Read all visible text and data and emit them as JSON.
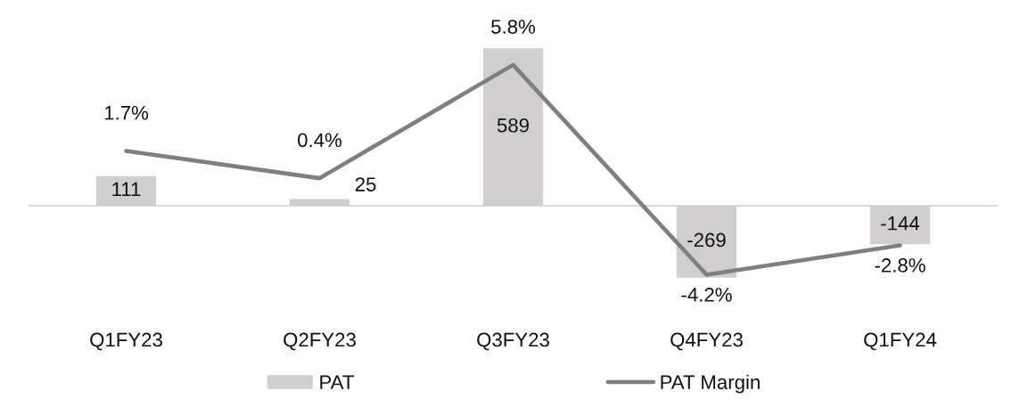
{
  "chart_data": {
    "type": "bar",
    "categories": [
      "Q1FY23",
      "Q2FY23",
      "Q3FY23",
      "Q4FY23",
      "Q1FY24"
    ],
    "series": [
      {
        "name": "PAT",
        "color": "#d0cece",
        "values": [
          111,
          25,
          589,
          -269,
          -144
        ],
        "value_labels": [
          "111",
          "25",
          "589",
          "-269",
          "-144"
        ]
      },
      {
        "name": "PAT Margin",
        "type": "line",
        "axis": "y2",
        "color": "#7f7f7f",
        "values": [
          1.7,
          0.4,
          5.8,
          -4.2,
          -2.8
        ],
        "value_labels": [
          "1.7%",
          "0.4%",
          "5.8%",
          "-4.2%",
          "-2.8%"
        ]
      }
    ],
    "legend": "bottom",
    "tick_labels": "x"
  }
}
